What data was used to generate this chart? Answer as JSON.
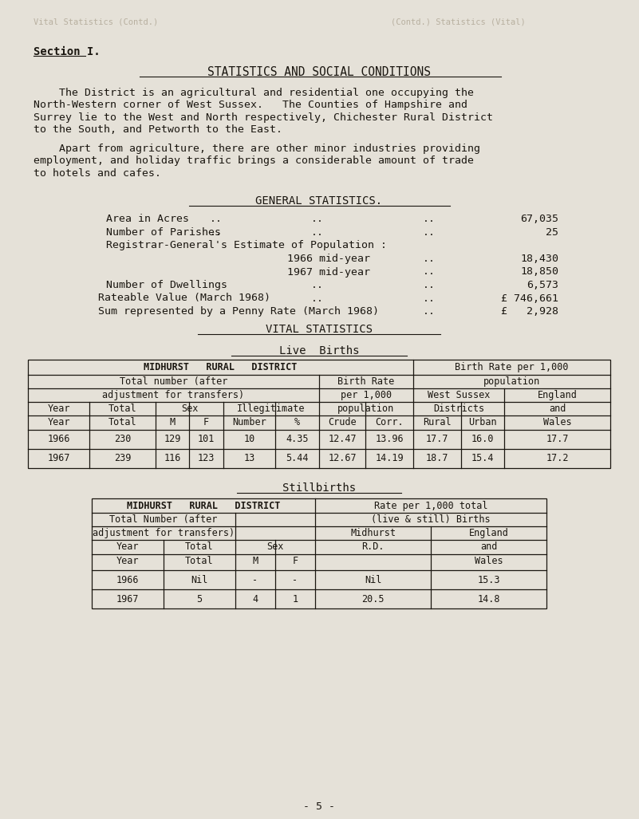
{
  "bg_color": "#e5e1d8",
  "page_color": "#edeae2",
  "text_color": "#1a1610",
  "ghost_color": "#b8b0a0",
  "section_label": "Section I.",
  "main_title": "STATISTICS AND SOCIAL CONDITIONS",
  "para1_lines": [
    "    The District is an agricultural and residential one occupying the",
    "North-Western corner of West Sussex.   The Counties of Hampshire and",
    "Surrey lie to the West and North respectively, Chichester Rural District",
    "to the South, and Petworth to the East."
  ],
  "para2_lines": [
    "    Apart from agriculture, there are other minor industries providing",
    "employment, and holiday traffic brings a considerable amount of trade",
    "to hotels and cafes."
  ],
  "gen_stats_title": "GENERAL STATISTICS.",
  "vital_stats_title": "VITAL STATISTICS",
  "live_births_title": "Live  Births",
  "stillbirths_title": "Stillbirths",
  "footer": "- 5 -"
}
